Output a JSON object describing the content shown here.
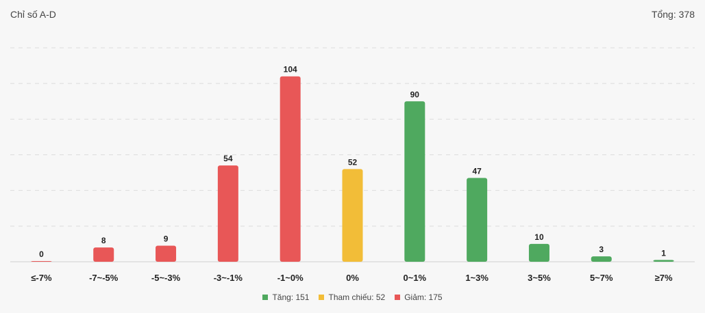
{
  "header": {
    "title": "Chỉ số A-D",
    "total_label": "Tổng: 378"
  },
  "colors": {
    "up": "#4fa95f",
    "ref": "#f2bd38",
    "down": "#e85757",
    "grid": "#dcdcdc"
  },
  "legend": [
    {
      "label": "Tăng: 151",
      "color": "#4fa95f"
    },
    {
      "label": "Tham chiếu: 52",
      "color": "#f2bd38"
    },
    {
      "label": "Giảm: 175",
      "color": "#e85757"
    }
  ],
  "chart_data": {
    "type": "bar",
    "title": "Chỉ số A-D",
    "categories": [
      "≤-7%",
      "-7~-5%",
      "-5~-3%",
      "-3~-1%",
      "-1~0%",
      "0%",
      "0~1%",
      "1~3%",
      "3~5%",
      "5~7%",
      "≥7%"
    ],
    "values": [
      0,
      8,
      9,
      54,
      104,
      52,
      90,
      47,
      10,
      3,
      1
    ],
    "bar_groups": [
      "down",
      "down",
      "down",
      "down",
      "down",
      "ref",
      "up",
      "up",
      "up",
      "up",
      "up"
    ],
    "ylim": [
      0,
      120
    ],
    "grid": true,
    "legend_position": "bottom"
  }
}
